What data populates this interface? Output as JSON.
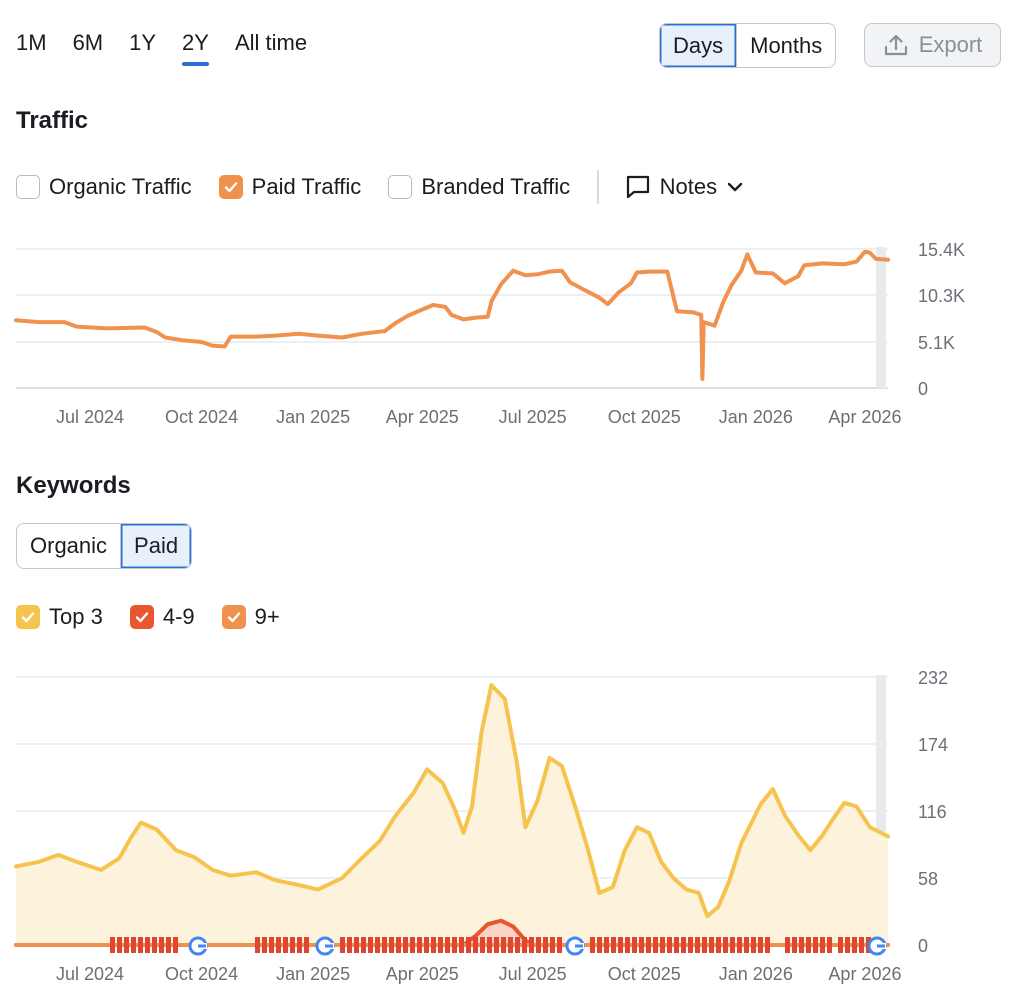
{
  "range_tabs": [
    {
      "label": "1M",
      "active": false
    },
    {
      "label": "6M",
      "active": false
    },
    {
      "label": "1Y",
      "active": false
    },
    {
      "label": "2Y",
      "active": true
    },
    {
      "label": "All time",
      "active": false
    }
  ],
  "granularity": [
    {
      "label": "Days",
      "active": true
    },
    {
      "label": "Months",
      "active": false
    }
  ],
  "export_label": "Export",
  "traffic": {
    "title": "Traffic",
    "checkboxes": [
      {
        "label": "Organic Traffic",
        "checked": false,
        "color": "#ffffff"
      },
      {
        "label": "Paid Traffic",
        "checked": true,
        "color": "#f0914e"
      },
      {
        "label": "Branded Traffic",
        "checked": false,
        "color": "#ffffff"
      }
    ],
    "notes_label": "Notes"
  },
  "keywords": {
    "title": "Keywords",
    "toggle": [
      {
        "label": "Organic",
        "active": false
      },
      {
        "label": "Paid",
        "active": true
      }
    ],
    "legend": [
      {
        "label": "Top 3",
        "color": "#f6c34f"
      },
      {
        "label": "4-9",
        "color": "#e9552f"
      },
      {
        "label": "9+",
        "color": "#f0914e"
      }
    ]
  },
  "chart_data": [
    {
      "type": "line",
      "name": "traffic-chart",
      "title": "",
      "xlabel": "",
      "ylabel": "",
      "x_range": [
        "2024-05-01",
        "2026-04-20"
      ],
      "x_ticks": [
        {
          "label": "Jul 2024",
          "date": "2024-07-01"
        },
        {
          "label": "Oct 2024",
          "date": "2024-10-01"
        },
        {
          "label": "Jan 2025",
          "date": "2025-01-01"
        },
        {
          "label": "Apr 2025",
          "date": "2025-04-01"
        },
        {
          "label": "Jul 2025",
          "date": "2025-07-01"
        },
        {
          "label": "Oct 2025",
          "date": "2025-10-01"
        },
        {
          "label": "Jan 2026",
          "date": "2026-01-01"
        },
        {
          "label": "Apr 2026",
          "date": "2026-04-01"
        }
      ],
      "y_ticks": [
        {
          "label": "0",
          "value": 0
        },
        {
          "label": "5.1K",
          "value": 5100
        },
        {
          "label": "10.3K",
          "value": 10300
        },
        {
          "label": "15.4K",
          "value": 15400
        }
      ],
      "ylim": [
        0,
        15400
      ],
      "grid": true,
      "series": [
        {
          "name": "Paid Traffic",
          "color": "#f0914e",
          "points": [
            [
              "2024-05-01",
              7500
            ],
            [
              "2024-05-20",
              7300
            ],
            [
              "2024-06-10",
              7300
            ],
            [
              "2024-06-20",
              6800
            ],
            [
              "2024-07-15",
              6600
            ],
            [
              "2024-08-15",
              6700
            ],
            [
              "2024-08-25",
              6200
            ],
            [
              "2024-09-01",
              5600
            ],
            [
              "2024-09-15",
              5300
            ],
            [
              "2024-10-01",
              5100
            ],
            [
              "2024-10-10",
              4700
            ],
            [
              "2024-10-20",
              4600
            ],
            [
              "2024-10-25",
              5700
            ],
            [
              "2024-11-15",
              5700
            ],
            [
              "2024-12-01",
              5800
            ],
            [
              "2024-12-20",
              6000
            ],
            [
              "2025-01-05",
              5800
            ],
            [
              "2025-01-25",
              5600
            ],
            [
              "2025-02-10",
              6000
            ],
            [
              "2025-03-01",
              6300
            ],
            [
              "2025-03-10",
              7200
            ],
            [
              "2025-03-20",
              8000
            ],
            [
              "2025-04-01",
              8700
            ],
            [
              "2025-04-10",
              9200
            ],
            [
              "2025-04-20",
              9000
            ],
            [
              "2025-04-25",
              8100
            ],
            [
              "2025-05-05",
              7600
            ],
            [
              "2025-05-15",
              7800
            ],
            [
              "2025-05-25",
              7900
            ],
            [
              "2025-05-28",
              9600
            ],
            [
              "2025-06-05",
              11500
            ],
            [
              "2025-06-15",
              13000
            ],
            [
              "2025-06-25",
              12500
            ],
            [
              "2025-07-05",
              12600
            ],
            [
              "2025-07-15",
              12900
            ],
            [
              "2025-07-25",
              13000
            ],
            [
              "2025-08-01",
              11700
            ],
            [
              "2025-08-15",
              10700
            ],
            [
              "2025-08-25",
              10000
            ],
            [
              "2025-09-01",
              9300
            ],
            [
              "2025-09-10",
              10600
            ],
            [
              "2025-09-20",
              11600
            ],
            [
              "2025-09-25",
              12800
            ],
            [
              "2025-10-05",
              12900
            ],
            [
              "2025-10-20",
              12900
            ],
            [
              "2025-10-28",
              8500
            ],
            [
              "2025-11-10",
              8400
            ],
            [
              "2025-11-17",
              8100
            ],
            [
              "2025-11-18",
              1000
            ],
            [
              "2025-11-19",
              7300
            ],
            [
              "2025-11-28",
              6900
            ],
            [
              "2025-12-05",
              9500
            ],
            [
              "2025-12-12",
              11400
            ],
            [
              "2025-12-20",
              13000
            ],
            [
              "2025-12-25",
              14800
            ],
            [
              "2026-01-01",
              12800
            ],
            [
              "2026-01-15",
              12700
            ],
            [
              "2026-01-25",
              11600
            ],
            [
              "2026-02-05",
              12400
            ],
            [
              "2026-02-10",
              13600
            ],
            [
              "2026-02-25",
              13800
            ],
            [
              "2026-03-15",
              13700
            ],
            [
              "2026-03-25",
              14000
            ],
            [
              "2026-04-01",
              15100
            ],
            [
              "2026-04-05",
              15000
            ],
            [
              "2026-04-10",
              14300
            ],
            [
              "2026-04-20",
              14200
            ]
          ]
        }
      ]
    },
    {
      "type": "area",
      "name": "keywords-chart",
      "title": "",
      "xlabel": "",
      "ylabel": "",
      "x_range": [
        "2024-05-01",
        "2026-04-20"
      ],
      "x_ticks": [
        {
          "label": "Jul 2024",
          "date": "2024-07-01"
        },
        {
          "label": "Oct 2024",
          "date": "2024-10-01"
        },
        {
          "label": "Jan 2025",
          "date": "2025-01-01"
        },
        {
          "label": "Apr 2025",
          "date": "2025-04-01"
        },
        {
          "label": "Jul 2025",
          "date": "2025-07-01"
        },
        {
          "label": "Oct 2025",
          "date": "2025-10-01"
        },
        {
          "label": "Jan 2026",
          "date": "2026-01-01"
        },
        {
          "label": "Apr 2026",
          "date": "2026-04-01"
        }
      ],
      "y_ticks": [
        {
          "label": "0",
          "value": 0
        },
        {
          "label": "58",
          "value": 58
        },
        {
          "label": "116",
          "value": 116
        },
        {
          "label": "174",
          "value": 174
        },
        {
          "label": "232",
          "value": 232
        }
      ],
      "ylim": [
        0,
        232
      ],
      "grid": true,
      "series": [
        {
          "name": "Top 3",
          "color": "#f6c34f",
          "fill": "#fdf3dc",
          "points": [
            [
              "2024-05-01",
              68
            ],
            [
              "2024-05-20",
              72
            ],
            [
              "2024-06-05",
              78
            ],
            [
              "2024-06-20",
              72
            ],
            [
              "2024-07-10",
              65
            ],
            [
              "2024-07-25",
              75
            ],
            [
              "2024-08-05",
              95
            ],
            [
              "2024-08-12",
              106
            ],
            [
              "2024-08-25",
              100
            ],
            [
              "2024-09-10",
              82
            ],
            [
              "2024-09-25",
              76
            ],
            [
              "2024-10-10",
              65
            ],
            [
              "2024-10-25",
              60
            ],
            [
              "2024-11-15",
              63
            ],
            [
              "2024-12-01",
              56
            ],
            [
              "2024-12-20",
              52
            ],
            [
              "2025-01-05",
              48
            ],
            [
              "2025-01-25",
              58
            ],
            [
              "2025-02-10",
              75
            ],
            [
              "2025-02-25",
              90
            ],
            [
              "2025-03-10",
              112
            ],
            [
              "2025-03-25",
              132
            ],
            [
              "2025-04-05",
              152
            ],
            [
              "2025-04-18",
              140
            ],
            [
              "2025-04-28",
              117
            ],
            [
              "2025-05-05",
              97
            ],
            [
              "2025-05-12",
              120
            ],
            [
              "2025-05-20",
              185
            ],
            [
              "2025-05-28",
              225
            ],
            [
              "2025-06-08",
              213
            ],
            [
              "2025-06-18",
              158
            ],
            [
              "2025-06-25",
              102
            ],
            [
              "2025-07-05",
              125
            ],
            [
              "2025-07-15",
              162
            ],
            [
              "2025-07-25",
              155
            ],
            [
              "2025-08-05",
              120
            ],
            [
              "2025-08-15",
              85
            ],
            [
              "2025-08-25",
              45
            ],
            [
              "2025-09-05",
              50
            ],
            [
              "2025-09-15",
              82
            ],
            [
              "2025-09-25",
              102
            ],
            [
              "2025-10-05",
              97
            ],
            [
              "2025-10-15",
              72
            ],
            [
              "2025-10-25",
              58
            ],
            [
              "2025-11-05",
              48
            ],
            [
              "2025-11-15",
              45
            ],
            [
              "2025-11-22",
              25
            ],
            [
              "2025-12-01",
              33
            ],
            [
              "2025-12-10",
              55
            ],
            [
              "2025-12-20",
              88
            ],
            [
              "2026-01-05",
              122
            ],
            [
              "2026-01-15",
              135
            ],
            [
              "2026-01-25",
              112
            ],
            [
              "2026-02-05",
              95
            ],
            [
              "2026-02-15",
              82
            ],
            [
              "2026-02-25",
              95
            ],
            [
              "2026-03-05",
              108
            ],
            [
              "2026-03-15",
              123
            ],
            [
              "2026-03-25",
              120
            ],
            [
              "2026-04-05",
              102
            ],
            [
              "2026-04-20",
              94
            ]
          ]
        },
        {
          "name": "4-9",
          "color": "#e9552f",
          "fill": "#f8d3c6",
          "points": [
            [
              "2024-05-01",
              0
            ],
            [
              "2025-05-05",
              0
            ],
            [
              "2025-05-15",
              8
            ],
            [
              "2025-05-25",
              18
            ],
            [
              "2025-06-05",
              21
            ],
            [
              "2025-06-15",
              16
            ],
            [
              "2025-06-25",
              4
            ],
            [
              "2025-07-01",
              0
            ],
            [
              "2026-04-20",
              0
            ]
          ]
        },
        {
          "name": "9+",
          "color": "#f0914e",
          "points": [
            [
              "2024-05-01",
              0
            ],
            [
              "2026-04-20",
              0
            ]
          ]
        }
      ]
    }
  ]
}
